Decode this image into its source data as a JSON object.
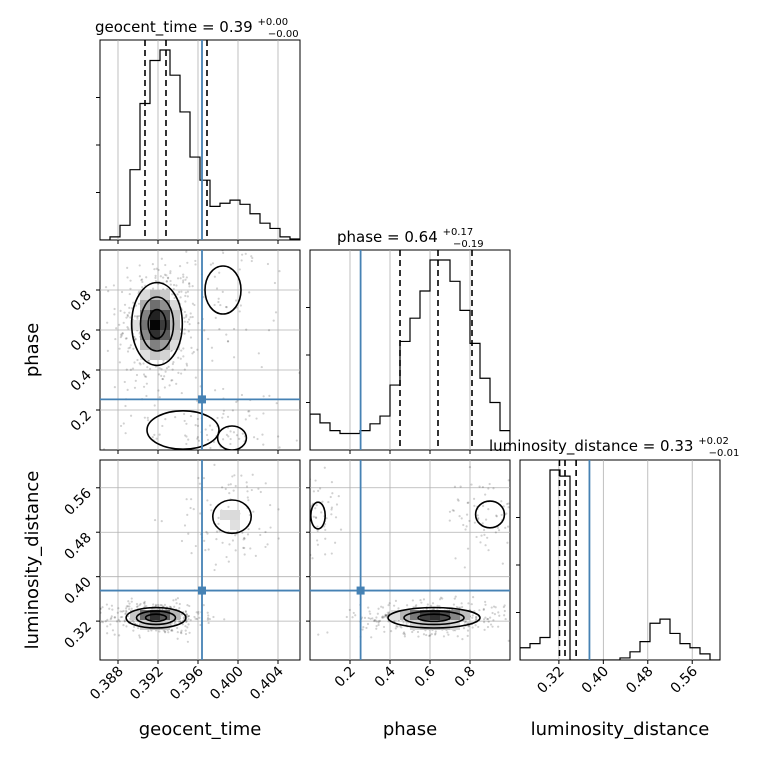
{
  "chart_data": {
    "type": "corner",
    "parameters": [
      "geocent_time",
      "phase",
      "luminosity_distance"
    ],
    "axis_labels": {
      "geocent_time": "geocent_time",
      "phase": "phase",
      "luminosity_distance": "luminosity_distance"
    },
    "ranges": {
      "geocent_time": [
        0.3862,
        0.4062
      ],
      "phase": [
        0.0,
        1.0
      ],
      "luminosity_distance": [
        0.25,
        0.61
      ]
    },
    "ticks": {
      "geocent_time": {
        "values": [
          0.388,
          0.392,
          0.396,
          0.4,
          0.404
        ],
        "labels": [
          "0.388",
          "0.392",
          "0.396",
          "0.400",
          "0.404"
        ]
      },
      "phase": {
        "values": [
          0.2,
          0.4,
          0.6,
          0.8
        ],
        "labels": [
          "0.2",
          "0.4",
          "0.6",
          "0.8"
        ]
      },
      "luminosity_distance": {
        "values": [
          0.32,
          0.4,
          0.48,
          0.56
        ],
        "labels": [
          "0.32",
          "0.40",
          "0.48",
          "0.56"
        ]
      }
    },
    "truths": {
      "geocent_time": 0.3964,
      "phase": 0.253,
      "luminosity_distance": 0.375
    },
    "truth_color": "#4682b4",
    "titles": {
      "geocent_time": {
        "main": "geocent_time = 0.39",
        "plus": "+0.00",
        "minus": "−0.00"
      },
      "phase": {
        "main": "phase = 0.64",
        "plus": "+0.17",
        "minus": "−0.19"
      },
      "luminosity_distance": {
        "main": "luminosity_distance = 0.33",
        "plus": "+0.02",
        "minus": "−0.01"
      }
    },
    "quantiles": {
      "geocent_time": [
        0.3907,
        0.3928,
        0.3969
      ],
      "phase": [
        0.45,
        0.64,
        0.81
      ],
      "luminosity_distance": [
        0.321,
        0.331,
        0.351
      ]
    },
    "histograms": {
      "geocent_time": {
        "bins": [
          0.3862,
          0.3872,
          0.3882,
          0.3892,
          0.3902,
          0.3912,
          0.3922,
          0.3932,
          0.3942,
          0.3952,
          0.3962,
          0.3972,
          0.3982,
          0.3992,
          0.4002,
          0.4012,
          0.4022,
          0.4032,
          0.4042,
          0.4052,
          0.4062
        ],
        "counts": [
          0,
          3,
          14,
          67,
          130,
          171,
          181,
          157,
          122,
          79,
          57,
          32,
          35,
          38,
          34,
          25,
          16,
          11,
          3,
          1
        ]
      },
      "phase": {
        "bins": [
          0.0,
          0.05,
          0.1,
          0.15,
          0.2,
          0.25,
          0.3,
          0.35,
          0.4,
          0.45,
          0.5,
          0.55,
          0.6,
          0.65,
          0.7,
          0.75,
          0.8,
          0.85,
          0.9,
          0.95,
          1.0
        ],
        "counts": [
          37,
          28,
          20,
          17,
          17,
          20,
          27,
          35,
          67,
          112,
          136,
          164,
          196,
          196,
          174,
          144,
          110,
          74,
          49,
          20
        ]
      },
      "luminosity_distance": {
        "bins": [
          0.25,
          0.268,
          0.286,
          0.304,
          0.322,
          0.34,
          0.358,
          0.376,
          0.394,
          0.412,
          0.43,
          0.448,
          0.466,
          0.484,
          0.502,
          0.52,
          0.538,
          0.556,
          0.574,
          0.592,
          0.61
        ],
        "counts": [
          6,
          8,
          11,
          93,
          90,
          0,
          0,
          0,
          0,
          0,
          1,
          4,
          9,
          18,
          20,
          13,
          8,
          6,
          3,
          0
        ]
      }
    },
    "density_blobs": {
      "phase_vs_geocent_time": [
        {
          "x": 0.3919,
          "y": 0.63,
          "sx": 0.0011,
          "sy": 0.09,
          "w": 1.0
        },
        {
          "x": 0.3945,
          "y": 0.1,
          "sx": 0.003,
          "sy": 0.08,
          "w": 0.12
        },
        {
          "x": 0.3985,
          "y": 0.8,
          "sx": 0.0015,
          "sy": 0.1,
          "w": 0.07
        },
        {
          "x": 0.3994,
          "y": 0.06,
          "sx": 0.0012,
          "sy": 0.05,
          "w": 0.05
        }
      ],
      "luminosity_distance_vs_geocent_time": [
        {
          "x": 0.3918,
          "y": 0.326,
          "sx": 0.0013,
          "sy": 0.008,
          "w": 1.0
        },
        {
          "x": 0.3994,
          "y": 0.508,
          "sx": 0.0016,
          "sy": 0.025,
          "w": 0.15
        }
      ],
      "luminosity_distance_vs_phase": [
        {
          "x": 0.62,
          "y": 0.326,
          "sx": 0.1,
          "sy": 0.008,
          "w": 1.0
        },
        {
          "x": 0.9,
          "y": 0.512,
          "sx": 0.06,
          "sy": 0.02,
          "w": 0.12
        },
        {
          "x": 0.04,
          "y": 0.51,
          "sx": 0.03,
          "sy": 0.02,
          "w": 0.05
        }
      ]
    },
    "hist_levels": 5,
    "grid": true
  }
}
